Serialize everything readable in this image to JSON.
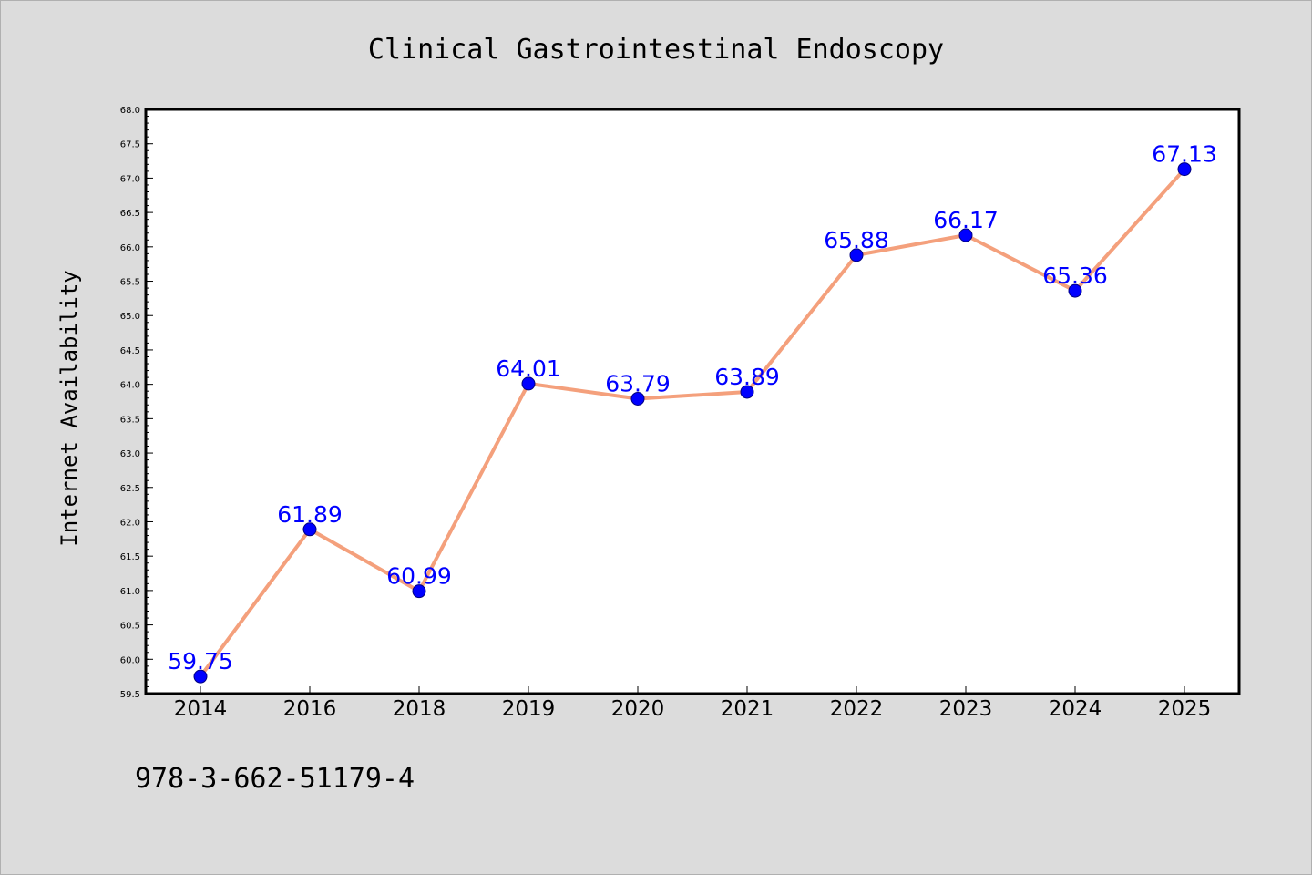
{
  "colors": {
    "background": "#dcdcdc",
    "plot_background": "#ffffff",
    "line": "#f4a07c",
    "marker": "#0000ff",
    "data_label": "#0000ff",
    "axis": "#000000"
  },
  "footer": {
    "isbn": "978-3-662-51179-4"
  },
  "chart_data": {
    "type": "line",
    "title": "Clinical Gastrointestinal Endoscopy",
    "xlabel": "",
    "ylabel": "Internet Availability",
    "categories": [
      "2014",
      "2016",
      "2018",
      "2019",
      "2020",
      "2021",
      "2022",
      "2023",
      "2024",
      "2025"
    ],
    "series": [
      {
        "values": [
          59.75,
          61.89,
          60.99,
          64.01,
          63.79,
          63.89,
          65.88,
          66.17,
          65.36,
          67.13
        ],
        "data_labels": [
          "59.75",
          "61.89",
          "60.99",
          "64.01",
          "63.79",
          "63.89",
          "65.88",
          "66.17",
          "65.36",
          "67.13"
        ],
        "marker": "circle"
      }
    ],
    "ylim": [
      59.5,
      68.0
    ],
    "yticks": [
      "59.5",
      "60.0",
      "60.5",
      "61.0",
      "61.5",
      "62.0",
      "62.5",
      "63.0",
      "63.5",
      "64.0",
      "64.5",
      "65.0",
      "65.5",
      "66.0",
      "66.5",
      "67.0",
      "67.5",
      "68.0"
    ],
    "grid": false,
    "legend": "none"
  }
}
